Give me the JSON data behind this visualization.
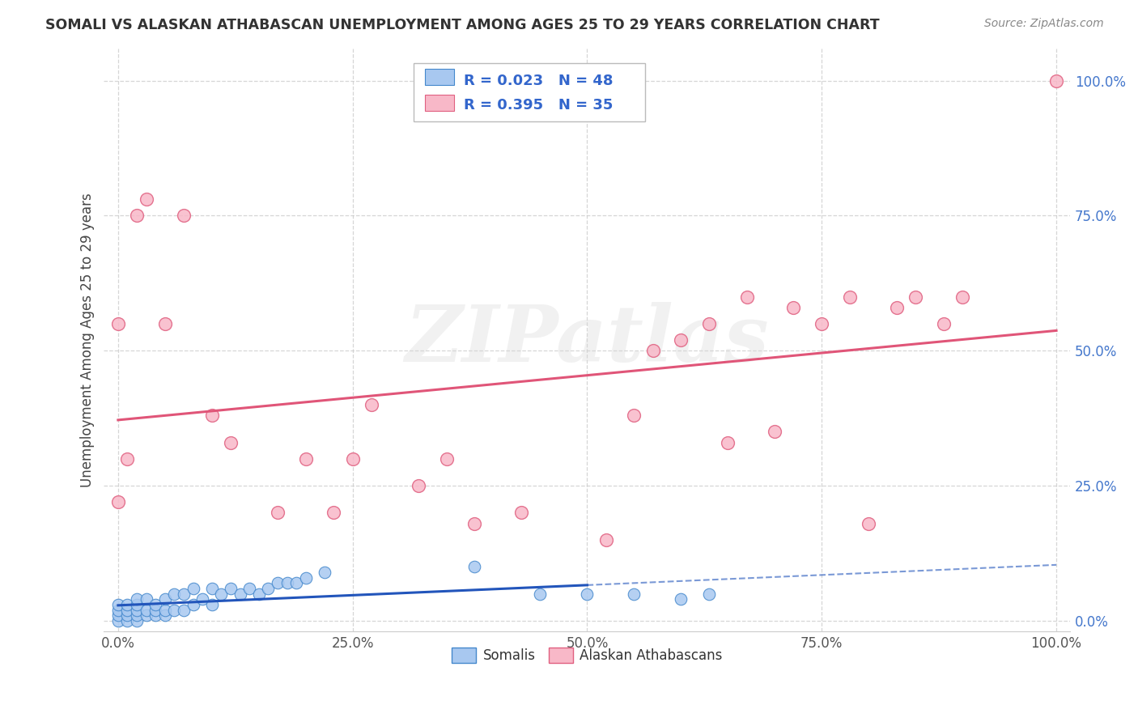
{
  "title": "SOMALI VS ALASKAN ATHABASCAN UNEMPLOYMENT AMONG AGES 25 TO 29 YEARS CORRELATION CHART",
  "source": "Source: ZipAtlas.com",
  "ylabel": "Unemployment Among Ages 25 to 29 years",
  "x_tick_labels": [
    "0.0%",
    "25.0%",
    "50.0%",
    "75.0%",
    "100.0%"
  ],
  "x_tick_values": [
    0.0,
    0.25,
    0.5,
    0.75,
    1.0
  ],
  "y_tick_labels": [
    "0.0%",
    "25.0%",
    "50.0%",
    "75.0%",
    "100.0%"
  ],
  "y_tick_values": [
    0.0,
    0.25,
    0.5,
    0.75,
    1.0
  ],
  "r_somali": 0.023,
  "n_somali": 48,
  "r_athabascan": 0.395,
  "n_athabascan": 35,
  "color_somali_fill": "#a8c8f0",
  "color_somali_edge": "#4488cc",
  "color_athabascan_fill": "#f8b8c8",
  "color_athabascan_edge": "#e06080",
  "color_somali_line": "#2255bb",
  "color_athabascan_line": "#e05578",
  "background_color": "#ffffff",
  "grid_color": "#cccccc",
  "legend_r1": "R = 0.023",
  "legend_n1": "N = 48",
  "legend_r2": "R = 0.395",
  "legend_n2": "N = 35",
  "somali_x": [
    0.0,
    0.0,
    0.0,
    0.0,
    0.01,
    0.01,
    0.01,
    0.01,
    0.02,
    0.02,
    0.02,
    0.02,
    0.02,
    0.03,
    0.03,
    0.03,
    0.04,
    0.04,
    0.04,
    0.05,
    0.05,
    0.05,
    0.06,
    0.06,
    0.07,
    0.07,
    0.08,
    0.08,
    0.09,
    0.1,
    0.1,
    0.11,
    0.12,
    0.13,
    0.14,
    0.15,
    0.16,
    0.17,
    0.18,
    0.19,
    0.2,
    0.22,
    0.38,
    0.45,
    0.5,
    0.55,
    0.6,
    0.63
  ],
  "somali_y": [
    0.0,
    0.01,
    0.02,
    0.03,
    0.0,
    0.01,
    0.02,
    0.03,
    0.0,
    0.01,
    0.02,
    0.03,
    0.04,
    0.01,
    0.02,
    0.04,
    0.01,
    0.02,
    0.03,
    0.01,
    0.02,
    0.04,
    0.02,
    0.05,
    0.02,
    0.05,
    0.03,
    0.06,
    0.04,
    0.03,
    0.06,
    0.05,
    0.06,
    0.05,
    0.06,
    0.05,
    0.06,
    0.07,
    0.07,
    0.07,
    0.08,
    0.09,
    0.1,
    0.05,
    0.05,
    0.05,
    0.04,
    0.05
  ],
  "athabascan_x": [
    0.0,
    0.0,
    0.01,
    0.02,
    0.03,
    0.05,
    0.07,
    0.1,
    0.12,
    0.17,
    0.2,
    0.23,
    0.25,
    0.27,
    0.32,
    0.35,
    0.38,
    0.43,
    0.52,
    0.55,
    0.57,
    0.6,
    0.63,
    0.65,
    0.67,
    0.7,
    0.72,
    0.75,
    0.78,
    0.8,
    0.83,
    0.85,
    0.88,
    0.9,
    1.0
  ],
  "athabascan_y": [
    0.22,
    0.55,
    0.3,
    0.75,
    0.78,
    0.55,
    0.75,
    0.38,
    0.33,
    0.2,
    0.3,
    0.2,
    0.3,
    0.4,
    0.25,
    0.3,
    0.18,
    0.2,
    0.15,
    0.38,
    0.5,
    0.52,
    0.55,
    0.33,
    0.6,
    0.35,
    0.58,
    0.55,
    0.6,
    0.18,
    0.58,
    0.6,
    0.55,
    0.6,
    1.0
  ],
  "somali_line_solid_end": 0.5,
  "watermark_text": "ZIPatlas",
  "watermark_color": "#d8d8d8"
}
